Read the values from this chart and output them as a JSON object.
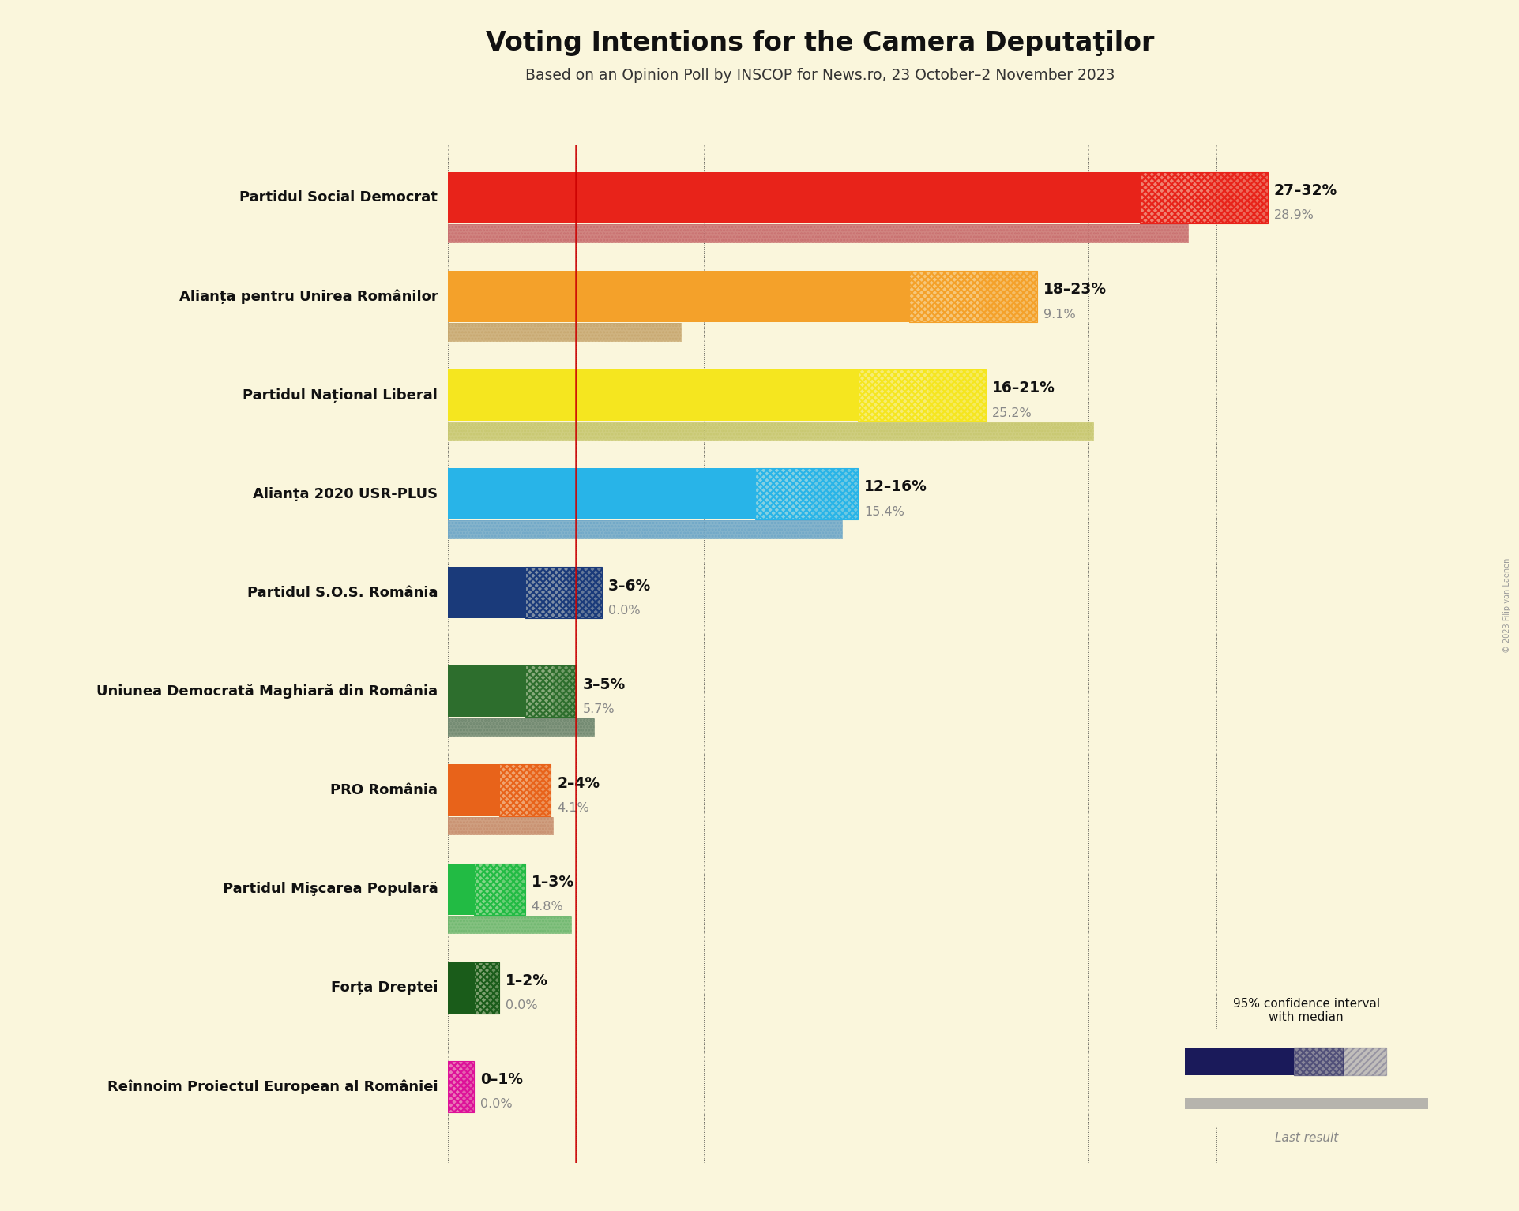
{
  "title": "Voting Intentions for the Camera Deputaţilor",
  "subtitle": "Based on an Opinion Poll by INSCOP for News.ro, 23 October–2 November 2023",
  "background_color": "#faf6dc",
  "parties": [
    {
      "name": "Partidul Social Democrat",
      "color": "#e8231a",
      "last_color": "#c97070",
      "low": 27,
      "high": 32,
      "last": 28.9,
      "label": "27–32%",
      "last_label": "28.9%"
    },
    {
      "name": "Alianța pentru Unirea Românilor",
      "color": "#f4a12a",
      "last_color": "#c8a870",
      "low": 18,
      "high": 23,
      "last": 9.1,
      "label": "18–23%",
      "last_label": "9.1%"
    },
    {
      "name": "Partidul Național Liberal",
      "color": "#f5e61f",
      "last_color": "#c8c870",
      "low": 16,
      "high": 21,
      "last": 25.2,
      "label": "16–21%",
      "last_label": "25.2%"
    },
    {
      "name": "Alianța 2020 USR-PLUS",
      "color": "#28b4e8",
      "last_color": "#70a8c8",
      "low": 12,
      "high": 16,
      "last": 15.4,
      "label": "12–16%",
      "last_label": "15.4%"
    },
    {
      "name": "Partidul S.O.S. România",
      "color": "#1a3a7a",
      "last_color": "#707090",
      "low": 3,
      "high": 6,
      "last": 0.0,
      "label": "3–6%",
      "last_label": "0.0%"
    },
    {
      "name": "Uniunea Democrată Maghiară din România",
      "color": "#2d6e2d",
      "last_color": "#708870",
      "low": 3,
      "high": 5,
      "last": 5.7,
      "label": "3–5%",
      "last_label": "5.7%"
    },
    {
      "name": "PRO România",
      "color": "#e8631a",
      "last_color": "#c89070",
      "low": 2,
      "high": 4,
      "last": 4.1,
      "label": "2–4%",
      "last_label": "4.1%"
    },
    {
      "name": "Partidul Mişcarea Populară",
      "color": "#22bb44",
      "last_color": "#70b870",
      "low": 1,
      "high": 3,
      "last": 4.8,
      "label": "1–3%",
      "last_label": "4.8%"
    },
    {
      "name": "Forța Dreptei",
      "color": "#1a5c1a",
      "last_color": "#708870",
      "low": 1,
      "high": 2,
      "last": 0.0,
      "label": "1–2%",
      "last_label": "0.0%"
    },
    {
      "name": "Reînnoim Proiectul European al României",
      "color": "#dd1199",
      "last_color": "#c070a8",
      "low": 0,
      "high": 1,
      "last": 0.0,
      "label": "0–1%",
      "last_label": "0.0%"
    }
  ],
  "xlim": [
    0,
    35
  ],
  "grid_vals": [
    0,
    5,
    10,
    15,
    20,
    25,
    30,
    35
  ],
  "threshold_line": 5,
  "copyright": "© 2023 Filip van Laenen"
}
